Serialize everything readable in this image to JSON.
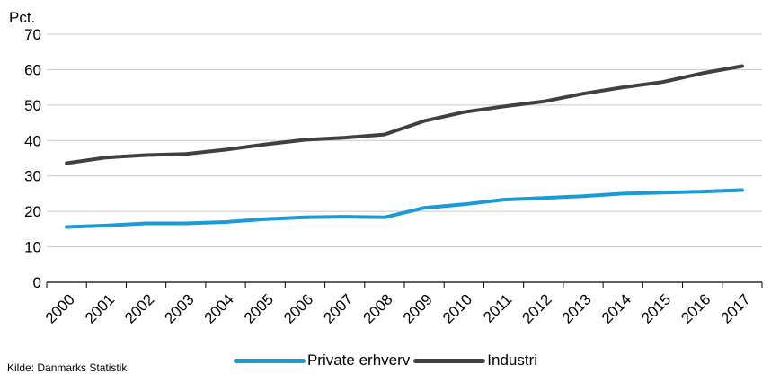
{
  "chart_data": {
    "type": "line",
    "ylabel": "Pct.",
    "ylim": [
      0,
      70
    ],
    "yticks": [
      0,
      10,
      20,
      30,
      40,
      50,
      60,
      70
    ],
    "grid": "horizontal",
    "legend_position": "bottom",
    "categories": [
      "2000",
      "2001",
      "2002",
      "2003",
      "2004",
      "2005",
      "2006",
      "2007",
      "2008",
      "2009",
      "2010",
      "2011",
      "2012",
      "2013",
      "2014",
      "2015",
      "2016",
      "2017"
    ],
    "series": [
      {
        "name": "Private erhverv",
        "color": "#1a9ad6",
        "values": [
          15.6,
          16.0,
          16.6,
          16.6,
          17.0,
          17.8,
          18.3,
          18.5,
          18.3,
          21.0,
          22.0,
          23.3,
          23.8,
          24.3,
          25.0,
          25.3,
          25.6,
          26.0
        ]
      },
      {
        "name": "Industri",
        "color": "#404040",
        "values": [
          33.6,
          35.2,
          35.9,
          36.2,
          37.4,
          38.9,
          40.2,
          40.8,
          41.7,
          45.5,
          48.0,
          49.6,
          51.0,
          53.2,
          55.0,
          56.5,
          59.0,
          61.0
        ]
      }
    ]
  },
  "source": "Kilde: Danmarks Statistik"
}
